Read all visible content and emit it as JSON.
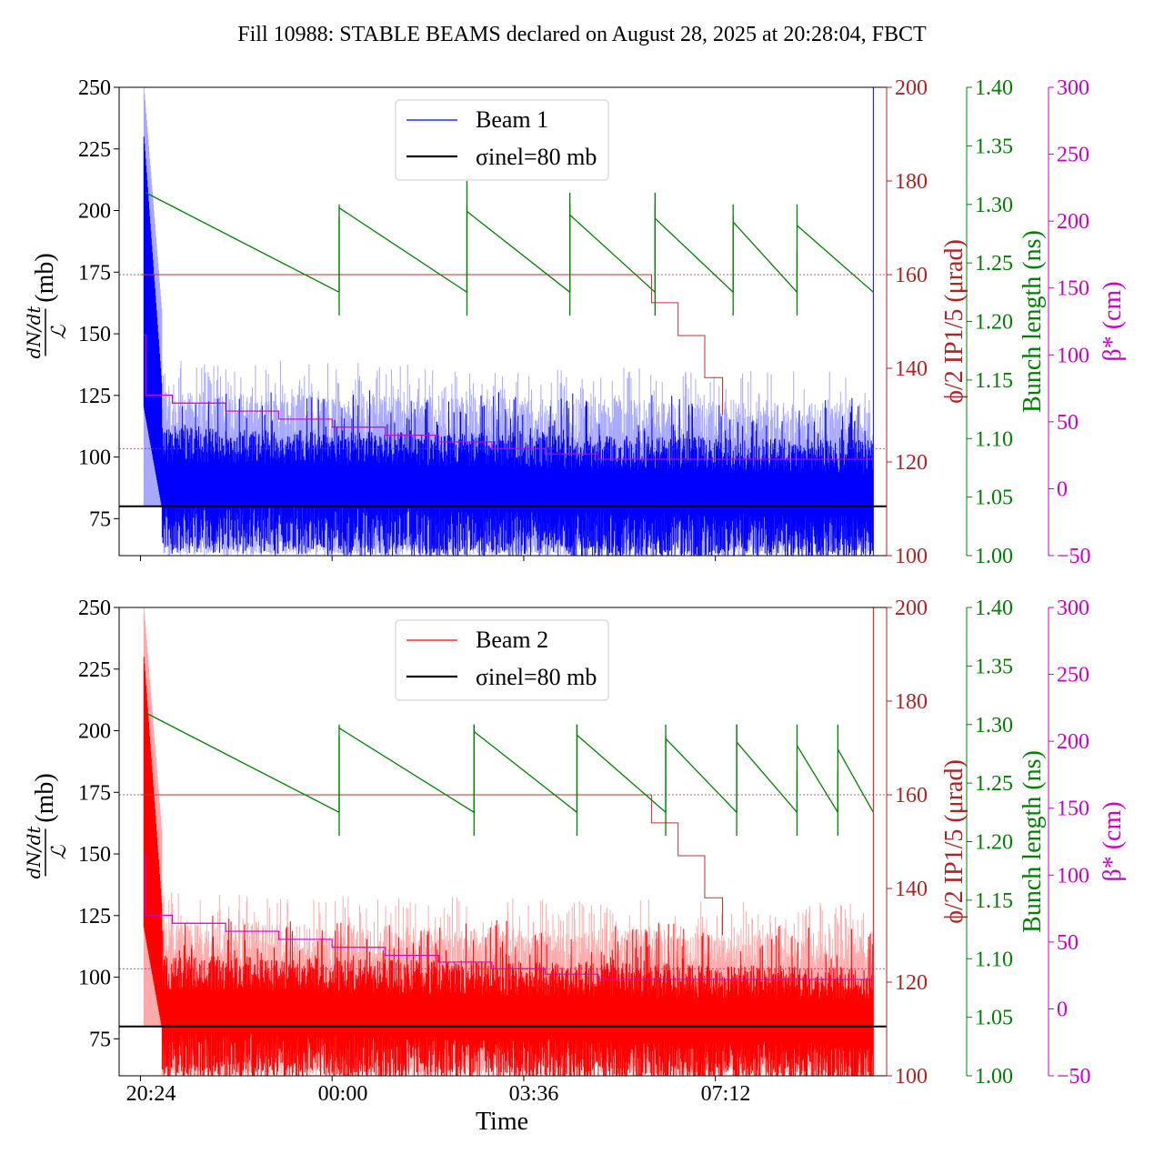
{
  "title": "Fill 10988: STABLE BEAMS declared on August 28, 2025 at 20:28:04, FBCT",
  "xlabel": "Time",
  "x_ticks": [
    "20:24",
    "00:00",
    "03:36",
    "07:12"
  ],
  "colors": {
    "beam1": "#0000ff",
    "beam1_light": "#a8a8ff",
    "beam2": "#ff0000",
    "beam2_light": "#ffaaaa",
    "sigma": "#000000",
    "crossing": "#c03030",
    "bunch": "#008000",
    "beta": "#cc00cc"
  },
  "chart_data": [
    {
      "type": "line",
      "panel": "top",
      "x_range": [
        "20:00",
        "10:25"
      ],
      "x_ticks": [
        "20:24",
        "00:00",
        "03:36",
        "07:12"
      ],
      "grid": false,
      "legend_position": "top-center",
      "axes": {
        "left": {
          "label_num": "dN/dt",
          "label_den": "ℒ",
          "label_unit": "(mb)",
          "ylim": [
            60,
            250
          ],
          "ticks": [
            75,
            100,
            125,
            150,
            175,
            200,
            225,
            250
          ],
          "color": "#000000"
        },
        "right1": {
          "label": "ϕ/2 IP1/5 (μrad)",
          "ylim": [
            100,
            200
          ],
          "ticks": [
            100,
            120,
            140,
            160,
            180,
            200
          ],
          "color": "#b22222"
        },
        "right2": {
          "label": "Bunch length (ns)",
          "ylim": [
            1.0,
            1.4
          ],
          "ticks": [
            "1.00",
            "1.05",
            "1.10",
            "1.15",
            "1.20",
            "1.25",
            "1.30",
            "1.35",
            "1.40"
          ],
          "color": "#008000"
        },
        "right3": {
          "label": "β* (cm)",
          "ylim": [
            -50,
            300
          ],
          "ticks": [
            "−50",
            "0",
            "50",
            "100",
            "150",
            "200",
            "250",
            "300"
          ],
          "color": "#cc00cc"
        }
      },
      "series": [
        {
          "name": "Beam 1",
          "axis": "left",
          "band_low": 60,
          "band_mean_start": 95,
          "band_mean_end": 90,
          "band_high_start": 140,
          "band_high_end": 135
        },
        {
          "name": "σinel=80 mb",
          "axis": "left",
          "value": 80
        }
      ],
      "legend": [
        "Beam 1",
        "σinel=80 mb"
      ],
      "crossing_angle": {
        "reference": 160,
        "steps": [
          {
            "t": "20:24",
            "v": 160
          },
          {
            "t": "05:40",
            "v": 160
          },
          {
            "t": "06:00",
            "v": 154
          },
          {
            "t": "06:30",
            "v": 147
          },
          {
            "t": "07:00",
            "v": 138
          },
          {
            "t": "07:20",
            "v": 130
          }
        ]
      },
      "beta_star": {
        "reference": 30,
        "steps": [
          {
            "t": "20:28",
            "v": 115
          },
          {
            "t": "20:30",
            "v": 70
          },
          {
            "t": "21:00",
            "v": 64
          },
          {
            "t": "22:00",
            "v": 58
          },
          {
            "t": "23:00",
            "v": 52
          },
          {
            "t": "00:00",
            "v": 46
          },
          {
            "t": "01:00",
            "v": 40
          },
          {
            "t": "02:00",
            "v": 35
          },
          {
            "t": "03:00",
            "v": 30
          },
          {
            "t": "04:00",
            "v": 26
          },
          {
            "t": "05:00",
            "v": 22
          },
          {
            "t": "10:10",
            "v": 22
          }
        ]
      },
      "bunch_length": {
        "start": "20:30",
        "end": "10:10",
        "refills": [
          "00:08",
          "02:32",
          "04:28",
          "06:04",
          "07:32",
          "08:44"
        ],
        "spikes": [
          {
            "t": "00:08",
            "v": 1.29
          },
          {
            "t": "02:32",
            "v": 1.32
          },
          {
            "t": "04:28",
            "v": 1.31
          },
          {
            "t": "06:04",
            "v": 1.31
          },
          {
            "t": "07:32",
            "v": 1.29
          },
          {
            "t": "08:44",
            "v": 1.26
          }
        ],
        "high": 1.31,
        "low": 1.225
      }
    },
    {
      "type": "line",
      "panel": "bottom",
      "x_range": [
        "20:00",
        "10:25"
      ],
      "x_ticks": [
        "20:24",
        "00:00",
        "03:36",
        "07:12"
      ],
      "grid": false,
      "legend_position": "top-center",
      "axes": {
        "left": {
          "label_num": "dN/dt",
          "label_den": "ℒ",
          "label_unit": "(mb)",
          "ylim": [
            60,
            250
          ],
          "ticks": [
            75,
            100,
            125,
            150,
            175,
            200,
            225,
            250
          ],
          "color": "#000000"
        },
        "right1": {
          "label": "ϕ/2 IP1/5 (μrad)",
          "ylim": [
            100,
            200
          ],
          "ticks": [
            100,
            120,
            140,
            160,
            180,
            200
          ],
          "color": "#b22222"
        },
        "right2": {
          "label": "Bunch length (ns)",
          "ylim": [
            1.0,
            1.4
          ],
          "ticks": [
            "1.00",
            "1.05",
            "1.10",
            "1.15",
            "1.20",
            "1.25",
            "1.30",
            "1.35",
            "1.40"
          ],
          "color": "#008000"
        },
        "right3": {
          "label": "β* (cm)",
          "ylim": [
            -50,
            300
          ],
          "ticks": [
            "−50",
            "0",
            "50",
            "100",
            "150",
            "200",
            "250",
            "300"
          ],
          "color": "#cc00cc"
        }
      },
      "series": [
        {
          "name": "Beam 2",
          "axis": "left",
          "band_low": 60,
          "band_mean_start": 92,
          "band_mean_end": 87,
          "band_high_start": 135,
          "band_high_end": 130
        },
        {
          "name": "σinel=80 mb",
          "axis": "left",
          "value": 80
        }
      ],
      "legend": [
        "Beam 2",
        "σinel=80 mb"
      ],
      "crossing_angle": {
        "reference": 160,
        "steps": [
          {
            "t": "20:24",
            "v": 160
          },
          {
            "t": "05:40",
            "v": 160
          },
          {
            "t": "06:00",
            "v": 154
          },
          {
            "t": "06:30",
            "v": 147
          },
          {
            "t": "07:00",
            "v": 138
          },
          {
            "t": "07:20",
            "v": 130
          }
        ]
      },
      "beta_star": {
        "reference": 30,
        "steps": [
          {
            "t": "20:28",
            "v": 115
          },
          {
            "t": "20:30",
            "v": 70
          },
          {
            "t": "21:00",
            "v": 64
          },
          {
            "t": "22:00",
            "v": 58
          },
          {
            "t": "23:00",
            "v": 52
          },
          {
            "t": "00:00",
            "v": 46
          },
          {
            "t": "01:00",
            "v": 40
          },
          {
            "t": "02:00",
            "v": 35
          },
          {
            "t": "03:00",
            "v": 30
          },
          {
            "t": "04:00",
            "v": 26
          },
          {
            "t": "05:00",
            "v": 22
          },
          {
            "t": "10:10",
            "v": 22
          }
        ]
      },
      "bunch_length": {
        "start": "20:30",
        "end": "10:10",
        "refills": [
          "00:08",
          "02:40",
          "04:36",
          "06:16",
          "07:36",
          "08:44",
          "09:30"
        ],
        "spikes": [
          {
            "t": "00:08",
            "v": 1.29
          },
          {
            "t": "02:40",
            "v": 1.3
          },
          {
            "t": "04:36",
            "v": 1.3
          },
          {
            "t": "06:16",
            "v": 1.29
          },
          {
            "t": "07:36",
            "v": 1.3
          },
          {
            "t": "08:44",
            "v": 1.26
          },
          {
            "t": "09:30",
            "v": 1.26
          }
        ],
        "high": 1.31,
        "low": 1.225
      }
    }
  ]
}
